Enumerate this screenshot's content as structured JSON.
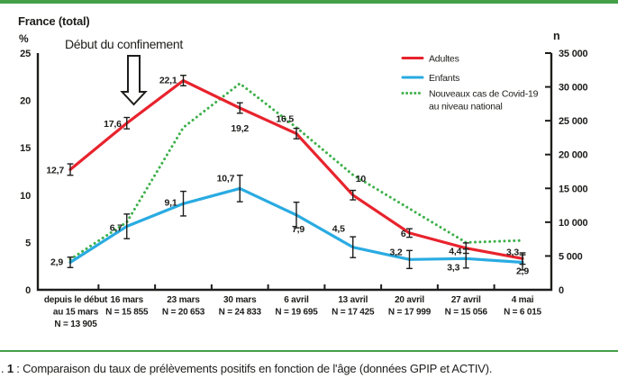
{
  "figure": {
    "accent_color": "#43a047",
    "background_color": "#ffffff",
    "axis_color": "#1d1d1b"
  },
  "chart_data": {
    "type": "line",
    "title": "France (total)",
    "annotation": "Début du confinement",
    "grid": false,
    "legend_position": "top-right",
    "left_axis": {
      "label": "%",
      "range": [
        0,
        25
      ],
      "ticks": [
        25,
        20,
        15,
        10,
        5,
        0
      ]
    },
    "right_axis": {
      "label": "n",
      "range": [
        0,
        35000
      ],
      "ticks": [
        {
          "v": 35000,
          "t": "35 000"
        },
        {
          "v": 30000,
          "t": "30 000"
        },
        {
          "v": 25000,
          "t": "25 000"
        },
        {
          "v": 20000,
          "t": "20 000"
        },
        {
          "v": 15000,
          "t": "15 000"
        },
        {
          "v": 10000,
          "t": "10 000"
        },
        {
          "v": 5000,
          "t": "5 000"
        },
        {
          "v": 0,
          "t": "0"
        }
      ]
    },
    "categories": [
      {
        "lines": [
          "depuis le début",
          "au 15 mars",
          "N = 13 905"
        ]
      },
      {
        "lines": [
          "16 mars",
          "N = 15 855"
        ]
      },
      {
        "lines": [
          "23 mars",
          "N = 20 653"
        ]
      },
      {
        "lines": [
          "30 mars",
          "N = 24 833"
        ]
      },
      {
        "lines": [
          "6 avril",
          "N = 19 695"
        ]
      },
      {
        "lines": [
          "13 avril",
          "N = 17 425"
        ]
      },
      {
        "lines": [
          "20 avril",
          "N = 17 999"
        ]
      },
      {
        "lines": [
          "27 avril",
          "N = 15 056"
        ]
      },
      {
        "lines": [
          "4 mai",
          "N = 6 015"
        ]
      }
    ],
    "series": [
      {
        "name": "Adultes",
        "legend_lines": [
          "Adultes"
        ],
        "color": "#e8232d",
        "axis": "left",
        "style": "solid",
        "values": [
          12.7,
          17.6,
          22.1,
          19.2,
          16.5,
          10,
          6,
          4.4,
          3.3
        ],
        "labels": [
          "12,7",
          "17,6",
          "22,1",
          "19,2",
          "16,5",
          "10",
          "6",
          "4,4",
          "3,3"
        ],
        "error": [
          0.6,
          0.6,
          0.55,
          0.55,
          0.55,
          0.5,
          0.45,
          0.55,
          0.6
        ]
      },
      {
        "name": "Enfants",
        "legend_lines": [
          "Enfants"
        ],
        "color": "#29abe2",
        "axis": "left",
        "style": "solid",
        "values": [
          2.9,
          6.7,
          9.1,
          10.7,
          7.9,
          4.5,
          3.2,
          3.3,
          2.9
        ],
        "labels": [
          "2,9",
          "6,7",
          "9,1",
          "10,7",
          "7,9",
          "4,5",
          "3,2",
          "3,3",
          "2,9"
        ],
        "error": [
          0.55,
          1.3,
          1.3,
          1.4,
          1.35,
          1.1,
          0.95,
          1.0,
          0.8
        ]
      },
      {
        "name": "Nouveaux cas de Covid-19 au niveau national",
        "legend_lines": [
          "Nouveaux cas de Covid-19",
          "au niveau national"
        ],
        "color": "#3db04a",
        "axis": "right",
        "style": "dotted",
        "values": [
          4500,
          10000,
          24000,
          30500,
          24000,
          17000,
          12000,
          7000,
          7300
        ]
      }
    ]
  },
  "caption": {
    "lead": ". ",
    "number": "1",
    "rest": " : Comparaison du taux de prélèvements positifs en fonction de l'âge (données GPIP et ACTIV)."
  }
}
